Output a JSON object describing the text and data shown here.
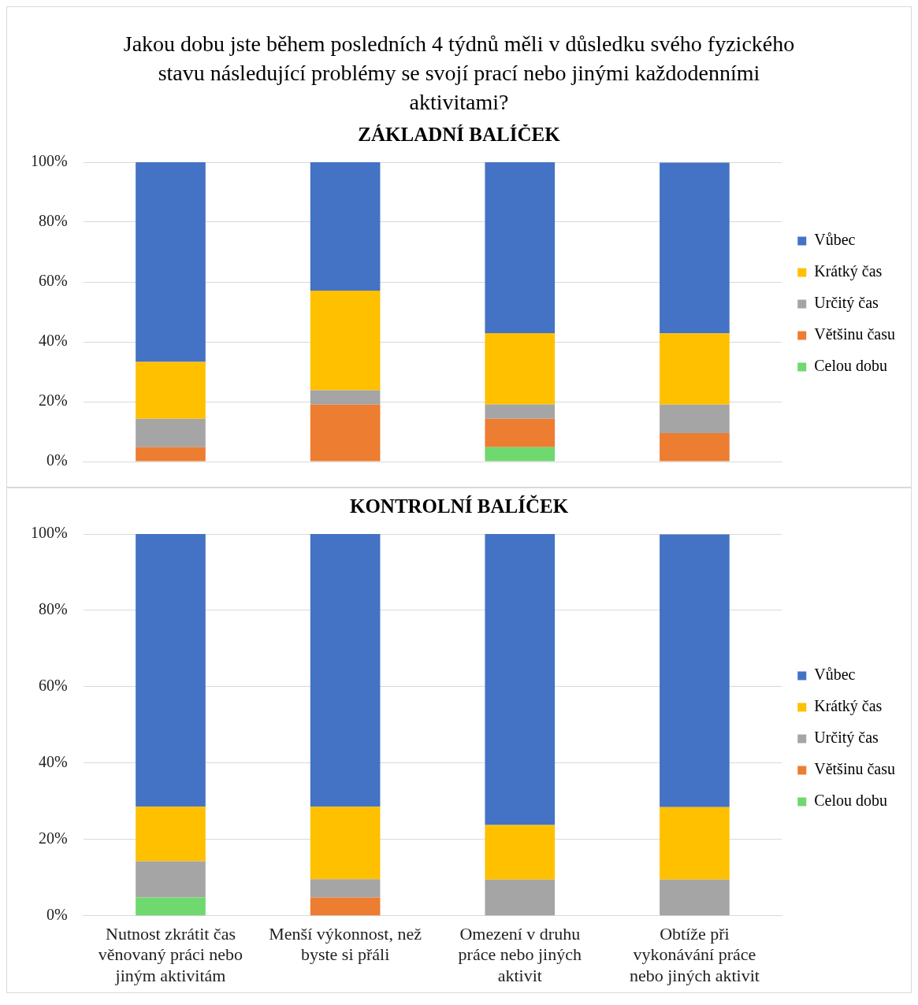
{
  "chart_data": [
    {
      "type": "bar",
      "title": "Jakou dobu jste během posledních 4 týdnů měli v důsledku svého fyzického stavu následující problémy se svojí prací nebo jinými každodenními aktivitami?",
      "subtitle": "ZÁKLADNÍ BALÍČEK",
      "categories": [
        null,
        null,
        null,
        null
      ],
      "stacked": true,
      "ylim": [
        0,
        100
      ],
      "yticks": [
        {
          "value": 0,
          "label": "0%"
        },
        {
          "value": 20,
          "label": "20%"
        },
        {
          "value": 40,
          "label": "40%"
        },
        {
          "value": 60,
          "label": "60%"
        },
        {
          "value": 80,
          "label": "80%"
        },
        {
          "value": 100,
          "label": "100%"
        }
      ],
      "grid": "y",
      "legend": "right",
      "tick_labels": "y",
      "series": [
        {
          "name": "Celou dobu",
          "color": "#6fd86f",
          "values": [
            0,
            0,
            4.8,
            0
          ]
        },
        {
          "name": "Většinu času",
          "color": "#ed7d31",
          "values": [
            4.8,
            19.0,
            9.5,
            9.5
          ]
        },
        {
          "name": "Určitý čas",
          "color": "#a5a5a5",
          "values": [
            9.5,
            4.8,
            4.8,
            9.5
          ]
        },
        {
          "name": "Krátký čas",
          "color": "#ffc000",
          "values": [
            19.0,
            33.3,
            23.8,
            23.8
          ]
        },
        {
          "name": "Vůbec",
          "color": "#4472c4",
          "values": [
            66.7,
            42.9,
            57.1,
            57.1
          ]
        }
      ]
    },
    {
      "type": "bar",
      "title": "KONTROLNÍ BALÍČEK",
      "categories": [
        "Nutnost zkrátit čas věnovaný práci nebo jiným aktivitám",
        "Menší výkonnost, než byste si přáli",
        "Omezení v druhu práce nebo jiných aktivit",
        "Obtíže při vykonávání práce nebo jiných aktivit"
      ],
      "stacked": true,
      "ylim": [
        0,
        100
      ],
      "yticks": [
        {
          "value": 0,
          "label": "0%"
        },
        {
          "value": 20,
          "label": "20%"
        },
        {
          "value": 40,
          "label": "40%"
        },
        {
          "value": 60,
          "label": "60%"
        },
        {
          "value": 80,
          "label": "80%"
        },
        {
          "value": 100,
          "label": "100%"
        }
      ],
      "grid": "y",
      "legend": "right",
      "series": [
        {
          "name": "Celou dobu",
          "color": "#6fd86f",
          "values": [
            4.8,
            0,
            0,
            0
          ]
        },
        {
          "name": "Většinu času",
          "color": "#ed7d31",
          "values": [
            0,
            4.8,
            0,
            0
          ]
        },
        {
          "name": "Určitý čas",
          "color": "#a5a5a5",
          "values": [
            9.5,
            4.8,
            9.5,
            9.5
          ]
        },
        {
          "name": "Krátký čas",
          "color": "#ffc000",
          "values": [
            14.3,
            19.0,
            14.3,
            19.0
          ]
        },
        {
          "name": "Vůbec",
          "color": "#4472c4",
          "values": [
            71.4,
            71.4,
            76.2,
            71.4
          ]
        }
      ]
    }
  ]
}
